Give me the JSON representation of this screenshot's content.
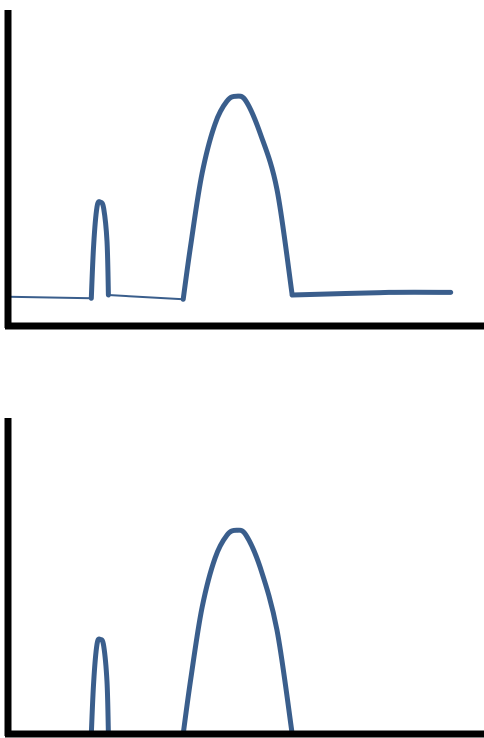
{
  "chart_data": [
    {
      "type": "line",
      "title": "",
      "xlabel": "",
      "ylabel": "",
      "grid": false,
      "legend": "none",
      "xlim": [
        0,
        100
      ],
      "ylim": [
        0,
        100
      ],
      "line_color": "#3A5E8C",
      "axis_color": "#000000",
      "series": [
        {
          "segments": [
            {
              "weight": "thin",
              "points": [
                [
                  0,
                  9
                ],
                [
                  17.5,
                  8.5
                ]
              ]
            },
            {
              "weight": "bold",
              "points": [
                [
                  17.5,
                  8.5
                ],
                [
                  18.0,
                  25
                ],
                [
                  18.7,
                  36.5
                ],
                [
                  19.4,
                  38
                ],
                [
                  20.1,
                  36
                ],
                [
                  20.8,
                  26
                ],
                [
                  21.1,
                  9.5
                ]
              ]
            },
            {
              "weight": "thin",
              "points": [
                [
                  21.1,
                  9.5
                ],
                [
                  36.8,
                  8.2
                ]
              ]
            },
            {
              "weight": "bold",
              "points": [
                [
                  36.8,
                  8.2
                ],
                [
                  38.5,
                  26
                ],
                [
                  40.8,
                  47
                ],
                [
                  43.5,
                  62
                ],
                [
                  46,
                  69
                ],
                [
                  48,
                  70.5
                ],
                [
                  50,
                  69
                ],
                [
                  53,
                  59
                ],
                [
                  56.5,
                  42
                ],
                [
                  59.7,
                  9.5
                ]
              ]
            },
            {
              "weight": "bold",
              "points": [
                [
                  59.7,
                  9.5
                ],
                [
                  80,
                  10.3
                ],
                [
                  93,
                  10.3
                ]
              ]
            }
          ]
        }
      ]
    },
    {
      "type": "line",
      "title": "",
      "xlabel": "",
      "ylabel": "",
      "grid": false,
      "legend": "none",
      "xlim": [
        0,
        100
      ],
      "ylim": [
        0,
        100
      ],
      "line_color": "#3A5E8C",
      "axis_color": "#000000",
      "series": [
        {
          "segments": [
            {
              "weight": "bold",
              "points": [
                [
                  17.5,
                  0
                ],
                [
                  18.0,
                  16
                ],
                [
                  18.7,
                  27.5
                ],
                [
                  19.4,
                  29
                ],
                [
                  20.1,
                  27
                ],
                [
                  20.8,
                  16
                ],
                [
                  21.1,
                  0
                ]
              ]
            },
            {
              "weight": "bold",
              "points": [
                [
                  36.8,
                  0
                ],
                [
                  38.5,
                  18
                ],
                [
                  40.8,
                  39
                ],
                [
                  43.5,
                  54
                ],
                [
                  46,
                  61
                ],
                [
                  48,
                  62.5
                ],
                [
                  50,
                  61
                ],
                [
                  53,
                  51
                ],
                [
                  56.5,
                  32
                ],
                [
                  59.7,
                  0
                ]
              ]
            }
          ]
        }
      ]
    }
  ]
}
